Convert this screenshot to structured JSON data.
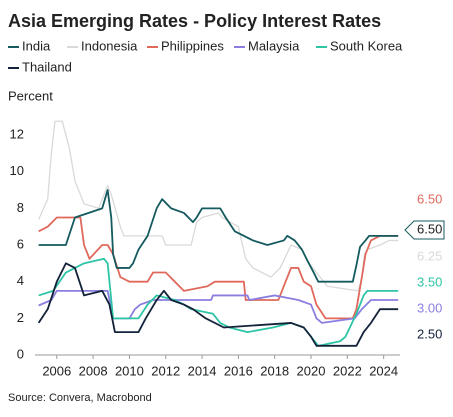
{
  "chart_data": {
    "type": "line",
    "title": "Asia Emerging Rates - Policy Interest Rates",
    "y_label": "Percent",
    "source": "Source: Convera, Macrobond",
    "xlim": [
      2004.8,
      2024.9
    ],
    "xticks": [
      2006,
      2008,
      2010,
      2012,
      2014,
      2016,
      2018,
      2020,
      2022,
      2024
    ],
    "ylim": [
      0,
      13
    ],
    "yticks": [
      0,
      2,
      4,
      6,
      8,
      10,
      12
    ],
    "grid": false,
    "series": [
      {
        "name": "India",
        "color": "#145a5e",
        "end_label": "6.50",
        "x": [
          2005,
          2006.5,
          2007,
          2008.5,
          2008.8,
          2009.0,
          2009.1,
          2009.3,
          2010.0,
          2010.2,
          2010.5,
          2011.0,
          2011.5,
          2011.8,
          2012.3,
          2013.0,
          2013.5,
          2013.7,
          2014.0,
          2015.0,
          2015.3,
          2015.8,
          2016.3,
          2016.8,
          2017.6,
          2018.5,
          2018.7,
          2019.1,
          2019.5,
          2019.8,
          2020.2,
          2020.4,
          2022.3,
          2022.5,
          2022.7,
          2023.0,
          2023.2,
          2024.8
        ],
        "values": [
          6.0,
          6.0,
          7.5,
          8.0,
          9.0,
          7.5,
          5.5,
          4.75,
          4.75,
          5.0,
          5.75,
          6.5,
          8.0,
          8.5,
          8.0,
          7.75,
          7.25,
          7.5,
          8.0,
          8.0,
          7.5,
          6.75,
          6.5,
          6.25,
          6.0,
          6.25,
          6.5,
          6.25,
          5.75,
          5.15,
          4.4,
          4.0,
          4.0,
          4.9,
          5.9,
          6.25,
          6.5,
          6.5
        ]
      },
      {
        "name": "Indonesia",
        "color": "#d9d9d9",
        "end_label": "6.25",
        "x": [
          2005,
          2005.5,
          2005.7,
          2005.9,
          2006.3,
          2006.7,
          2007.0,
          2007.5,
          2008.3,
          2008.8,
          2009.0,
          2009.5,
          2009.7,
          2011.8,
          2012.0,
          2013.4,
          2013.7,
          2014.0,
          2014.9,
          2015.1,
          2016.0,
          2016.4,
          2016.8,
          2017.8,
          2018.3,
          2018.9,
          2019.5,
          2019.9,
          2020.3,
          2020.9,
          2022.6,
          2022.8,
          2022.95,
          2023.1,
          2023.8,
          2024.3,
          2024.8
        ],
        "values": [
          7.4,
          8.5,
          11.0,
          12.75,
          12.75,
          11.25,
          9.5,
          8.25,
          8.0,
          9.25,
          8.75,
          7.0,
          6.5,
          6.5,
          6.0,
          6.0,
          7.25,
          7.5,
          7.75,
          7.5,
          7.0,
          5.25,
          4.75,
          4.25,
          4.75,
          6.0,
          5.75,
          5.0,
          4.5,
          3.75,
          3.5,
          4.25,
          5.5,
          5.75,
          6.0,
          6.25,
          6.25
        ]
      },
      {
        "name": "Philippines",
        "color": "#e0695c",
        "end_label": "6.50",
        "x": [
          2005,
          2005.5,
          2006.0,
          2007.3,
          2007.5,
          2007.8,
          2008.5,
          2008.8,
          2009.1,
          2009.5,
          2010.0,
          2011.0,
          2011.3,
          2012.0,
          2012.5,
          2013.0,
          2014.3,
          2014.7,
          2016.3,
          2016.4,
          2018.2,
          2018.4,
          2018.9,
          2019.3,
          2019.6,
          2020.0,
          2020.3,
          2020.8,
          2022.3,
          2022.5,
          2022.8,
          2023.0,
          2023.3,
          2023.8,
          2024.8
        ],
        "values": [
          6.75,
          7.0,
          7.5,
          7.5,
          6.0,
          5.25,
          6.0,
          6.0,
          5.5,
          4.25,
          4.0,
          4.0,
          4.5,
          4.5,
          4.0,
          3.5,
          3.75,
          4.0,
          4.0,
          3.0,
          3.0,
          3.5,
          4.75,
          4.75,
          4.0,
          3.75,
          2.75,
          2.0,
          2.0,
          2.5,
          4.25,
          5.5,
          6.25,
          6.5,
          6.5
        ]
      },
      {
        "name": "Malaysia",
        "color": "#8a7fe0",
        "end_label": "3.00",
        "x": [
          2005,
          2005.7,
          2006.0,
          2008.8,
          2009.1,
          2010.0,
          2010.3,
          2010.6,
          2011.3,
          2014.5,
          2014.6,
          2016.5,
          2016.6,
          2018.0,
          2019.3,
          2020.0,
          2020.3,
          2020.6,
          2022.4,
          2022.8,
          2023.3,
          2024.8
        ],
        "values": [
          2.7,
          3.0,
          3.5,
          3.5,
          2.0,
          2.0,
          2.5,
          2.75,
          3.0,
          3.0,
          3.25,
          3.25,
          3.0,
          3.25,
          3.0,
          2.75,
          2.0,
          1.75,
          2.0,
          2.5,
          3.0,
          3.0
        ]
      },
      {
        "name": "South Korea",
        "color": "#2ec4a6",
        "end_label": "3.50",
        "x": [
          2005,
          2005.8,
          2006.5,
          2007.5,
          2008.6,
          2008.8,
          2009.0,
          2009.1,
          2010.5,
          2011.0,
          2011.5,
          2012.5,
          2013.0,
          2013.4,
          2014.6,
          2015.0,
          2015.5,
          2016.5,
          2017.9,
          2018.9,
          2019.6,
          2020.2,
          2020.4,
          2021.6,
          2021.9,
          2022.5,
          2022.9,
          2023.1,
          2024.8
        ],
        "values": [
          3.25,
          3.5,
          4.5,
          5.0,
          5.25,
          5.0,
          3.0,
          2.0,
          2.0,
          2.75,
          3.25,
          3.0,
          2.75,
          2.5,
          2.25,
          1.75,
          1.5,
          1.25,
          1.5,
          1.75,
          1.5,
          0.75,
          0.5,
          0.75,
          1.0,
          2.25,
          3.25,
          3.5,
          3.5
        ]
      },
      {
        "name": "Thailand",
        "color": "#14233a",
        "end_label": "2.50",
        "x": [
          2005,
          2005.5,
          2006.0,
          2006.5,
          2007.0,
          2007.5,
          2008.5,
          2008.9,
          2009.2,
          2010.5,
          2010.9,
          2011.5,
          2011.9,
          2012.3,
          2013.0,
          2013.5,
          2014.2,
          2015.2,
          2018.9,
          2019.6,
          2020.0,
          2020.3,
          2022.5,
          2022.9,
          2023.3,
          2023.8,
          2024.8
        ],
        "values": [
          1.75,
          2.5,
          4.0,
          5.0,
          4.75,
          3.25,
          3.5,
          2.75,
          1.25,
          1.25,
          2.0,
          3.0,
          3.5,
          3.0,
          2.75,
          2.5,
          2.0,
          1.5,
          1.75,
          1.5,
          1.0,
          0.5,
          0.5,
          1.25,
          1.75,
          2.5,
          2.5
        ]
      }
    ]
  }
}
